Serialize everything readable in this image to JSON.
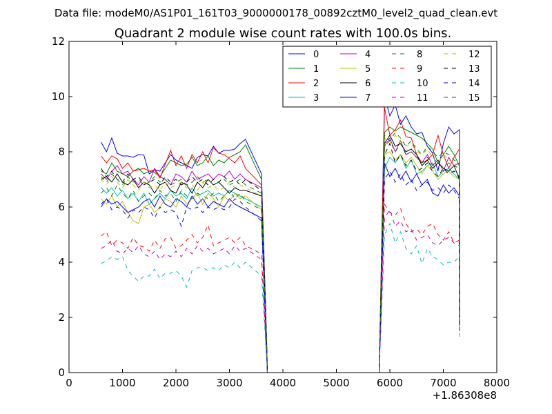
{
  "figure": {
    "suptitle": "Data file: modeM0/AS1P01_161T03_9000000178_00892cztM0_level2_quad_clean.evt"
  },
  "chart_data": {
    "type": "line",
    "title": "Quadrant 2 module wise count rates with 100.0s bins.",
    "xlabel": "",
    "ylabel": "",
    "x_offset_label": "+1.86308e8",
    "xlim": [
      0,
      8000
    ],
    "ylim": [
      0,
      12
    ],
    "xticks": [
      0,
      1000,
      2000,
      3000,
      4000,
      5000,
      6000,
      7000,
      8000
    ],
    "yticks": [
      0,
      2,
      4,
      6,
      8,
      10,
      12
    ],
    "grid": false,
    "legend": {
      "placement": "top-right",
      "columns": 4
    },
    "segments": [
      {
        "x_start": 600,
        "x_end": 3500,
        "step": 100
      },
      {
        "gap": [
          3600,
          3700,
          5800
        ]
      },
      {
        "x_start": 5900,
        "x_end": 7200,
        "step": 100
      }
    ],
    "series": [
      {
        "name": "0",
        "color": "#0000ff",
        "dash": "solid",
        "seg1": [
          8.35,
          8.0,
          8.5,
          7.95,
          7.85,
          7.85,
          7.8,
          7.9,
          7.88,
          7.2,
          7.35,
          7.3,
          7.6,
          7.9,
          7.7,
          7.6,
          7.5,
          7.4,
          7.8,
          7.9,
          7.85,
          8.2,
          7.95,
          8.05,
          8.05,
          8.1,
          8.3,
          8.45
        ],
        "tail1": [
          7.2,
          0.9,
          0
        ],
        "seg2": [
          10.0,
          9.3,
          9.7,
          9.0,
          9.3,
          8.9,
          8.65,
          8.7,
          8.2,
          7.95,
          7.3,
          8.3,
          8.9,
          8.65,
          8.8
        ],
        "tail2": [
          2.4
        ]
      },
      {
        "name": "1",
        "color": "#008000",
        "dash": "solid",
        "seg1": [
          7.3,
          7.2,
          7.6,
          7.3,
          7.2,
          7.1,
          7.3,
          7.4,
          7.2,
          7.3,
          7.25,
          7.1,
          7.4,
          7.7,
          7.6,
          7.5,
          7.55,
          7.8,
          7.5,
          7.6,
          7.85,
          7.5,
          7.7,
          7.6,
          7.8,
          7.9,
          8.0,
          8.25
        ],
        "tail1": [
          7.0,
          0.8,
          0
        ],
        "seg2": [
          8.7,
          8.9,
          8.75,
          8.9,
          8.8,
          8.7,
          8.6,
          8.5,
          8.3,
          8.1,
          7.6,
          7.9,
          8.2,
          7.9,
          7.5
        ],
        "tail2": [
          2.0
        ]
      },
      {
        "name": "2",
        "color": "#ff0000",
        "dash": "solid",
        "seg1": [
          7.85,
          7.6,
          7.85,
          7.75,
          7.4,
          7.6,
          7.3,
          7.35,
          7.4,
          7.3,
          7.35,
          7.05,
          7.55,
          8.05,
          7.5,
          7.85,
          7.4,
          7.9,
          7.6,
          8.0,
          7.6,
          8.15,
          7.95,
          7.9,
          7.75,
          7.6,
          7.85,
          7.4
        ],
        "tail1": [
          6.8,
          0.7,
          0
        ],
        "seg2": [
          9.6,
          8.6,
          8.8,
          9.15,
          8.55,
          8.5,
          7.9,
          7.6,
          7.7,
          7.9,
          8.6,
          7.9,
          7.4,
          7.8,
          8.1
        ],
        "tail2": [
          2.3
        ]
      },
      {
        "name": "3",
        "color": "#00bfbf",
        "dash": "solid",
        "seg1": [
          6.7,
          6.5,
          6.7,
          6.4,
          6.6,
          6.3,
          6.5,
          6.2,
          6.5,
          6.1,
          6.3,
          6.5,
          6.3,
          6.6,
          6.4,
          6.5,
          6.3,
          6.7,
          6.4,
          6.5,
          6.6,
          6.4,
          6.5,
          6.4,
          6.6,
          6.5,
          6.4,
          6.3
        ],
        "tail1": [
          6.0,
          0.6,
          0
        ],
        "seg2": [
          7.4,
          7.8,
          7.6,
          7.9,
          7.4,
          7.7,
          7.2,
          7.3,
          7.5,
          7.6,
          7.1,
          7.3,
          7.4,
          7.2,
          7.0
        ],
        "tail2": [
          1.9
        ]
      },
      {
        "name": "4",
        "color": "#bf00bf",
        "dash": "solid",
        "seg1": [
          7.2,
          7.0,
          7.3,
          7.5,
          7.2,
          7.3,
          7.0,
          6.8,
          7.1,
          6.9,
          7.4,
          7.1,
          7.0,
          6.8,
          7.2,
          7.1,
          6.9,
          7.3,
          7.0,
          7.1,
          7.2,
          7.0,
          7.2,
          7.1,
          7.3,
          7.0,
          7.2,
          7.0
        ],
        "tail1": [
          6.7,
          0.7,
          0
        ],
        "seg2": [
          8.2,
          8.5,
          8.0,
          8.4,
          7.9,
          8.0,
          7.8,
          7.6,
          7.9,
          7.5,
          7.7,
          7.3,
          7.8,
          7.5,
          7.6
        ],
        "tail2": [
          2.1
        ]
      },
      {
        "name": "5",
        "color": "#bfbf00",
        "dash": "solid",
        "seg1": [
          6.3,
          6.1,
          6.4,
          6.0,
          6.2,
          5.8,
          5.5,
          5.4,
          6.0,
          6.1,
          5.8,
          6.0,
          6.3,
          6.2,
          6.0,
          6.4,
          6.1,
          6.3,
          6.5,
          6.1,
          6.5,
          6.3,
          6.0,
          6.4,
          6.2,
          6.5,
          6.3,
          6.4
        ],
        "tail1": [
          5.9,
          0.6,
          0
        ],
        "seg2": [
          7.9,
          8.0,
          7.7,
          7.9,
          7.6,
          7.8,
          7.5,
          7.2,
          7.5,
          7.3,
          7.0,
          7.2,
          7.3,
          7.1,
          7.0
        ],
        "tail2": [
          1.8
        ]
      },
      {
        "name": "6",
        "color": "#000000",
        "dash": "solid",
        "seg1": [
          7.0,
          7.1,
          6.9,
          7.2,
          6.9,
          6.8,
          7.0,
          6.7,
          6.9,
          6.8,
          6.5,
          6.8,
          6.9,
          6.6,
          6.5,
          6.9,
          6.8,
          6.5,
          6.9,
          6.7,
          7.0,
          6.8,
          6.9,
          6.7,
          6.5,
          6.7,
          6.6,
          6.6
        ],
        "tail1": [
          6.4,
          0.6,
          0
        ],
        "seg2": [
          8.3,
          8.6,
          8.2,
          8.3,
          8.0,
          8.1,
          7.9,
          7.5,
          7.7,
          7.4,
          7.6,
          7.4,
          7.3,
          7.5,
          7.0
        ],
        "tail2": [
          2.0
        ]
      },
      {
        "name": "7",
        "color": "#0000ff",
        "dash": "solid",
        "seg1": [
          6.0,
          6.3,
          6.1,
          6.2,
          6.0,
          5.8,
          5.9,
          6.0,
          6.2,
          6.3,
          6.0,
          6.4,
          6.1,
          6.0,
          6.3,
          6.2,
          6.0,
          6.4,
          6.1,
          6.3,
          6.0,
          6.2,
          6.1,
          6.0,
          6.3,
          6.1,
          6.0,
          5.9
        ],
        "tail1": [
          5.6,
          0.5,
          0
        ],
        "seg2": [
          7.6,
          7.1,
          7.4,
          7.0,
          7.3,
          6.9,
          7.2,
          6.8,
          7.0,
          6.5,
          6.4,
          6.8,
          6.5,
          6.7,
          6.4
        ],
        "tail2": [
          1.7
        ]
      },
      {
        "name": "8",
        "color": "#008000",
        "dash": "dashed",
        "seg1": [
          6.5,
          6.7,
          6.4,
          6.8,
          6.5,
          6.3,
          6.6,
          6.2,
          6.4,
          6.5,
          6.3,
          6.6,
          6.4,
          6.5,
          6.2,
          6.6,
          6.4,
          6.3,
          6.5,
          6.4,
          6.3,
          6.5,
          6.2,
          6.4,
          6.6,
          6.3,
          6.5,
          6.2
        ],
        "tail1": [
          5.9,
          0.6,
          0
        ],
        "seg2": [
          8.2,
          8.4,
          8.0,
          8.3,
          7.9,
          8.0,
          7.8,
          7.6,
          7.8,
          7.5,
          7.7,
          7.4,
          7.6,
          7.5,
          7.4
        ],
        "tail2": [
          1.9
        ]
      },
      {
        "name": "9",
        "color": "#ff0000",
        "dash": "dashed",
        "seg1": [
          4.95,
          5.1,
          4.6,
          4.8,
          4.7,
          4.5,
          4.9,
          4.6,
          4.55,
          4.4,
          4.8,
          4.5,
          4.85,
          4.9,
          4.5,
          4.6,
          4.8,
          5.0,
          4.7,
          4.9,
          5.35,
          4.6,
          4.7,
          4.8,
          4.9,
          4.7,
          4.9,
          4.6
        ],
        "tail1": [
          4.3,
          0.4,
          0
        ],
        "seg2": [
          6.1,
          5.8,
          5.7,
          5.95,
          5.4,
          5.1,
          5.2,
          5.0,
          5.3,
          5.4,
          5.0,
          4.8,
          5.1,
          4.7,
          4.8
        ],
        "tail2": [
          1.5
        ]
      },
      {
        "name": "10",
        "color": "#00bfbf",
        "dash": "dashed",
        "seg1": [
          3.95,
          4.05,
          4.2,
          4.1,
          4.2,
          3.7,
          3.5,
          3.3,
          3.5,
          3.5,
          3.75,
          3.4,
          3.6,
          3.6,
          3.7,
          3.5,
          3.1,
          3.7,
          3.8,
          3.8,
          3.7,
          3.8,
          3.7,
          3.9,
          3.8,
          4.0,
          3.8,
          4.0
        ],
        "tail1": [
          3.5,
          0.4,
          0
        ],
        "seg2": [
          5.0,
          5.4,
          4.7,
          5.1,
          4.5,
          4.3,
          4.6,
          3.95,
          4.5,
          4.2,
          4.1,
          3.9,
          4.0,
          4.0,
          4.2
        ],
        "tail2": [
          1.3
        ]
      },
      {
        "name": "11",
        "color": "#bf00bf",
        "dash": "dashed",
        "seg1": [
          4.5,
          4.6,
          4.8,
          4.4,
          4.3,
          4.5,
          4.35,
          4.6,
          4.3,
          4.2,
          4.4,
          4.1,
          4.3,
          4.2,
          4.4,
          4.2,
          4.5,
          4.3,
          4.6,
          4.4,
          4.5,
          4.3,
          4.4,
          4.5,
          4.3,
          4.6,
          4.4,
          4.5
        ],
        "tail1": [
          4.1,
          0.4,
          0
        ],
        "seg2": [
          5.6,
          5.9,
          5.3,
          5.5,
          5.1,
          5.2,
          4.8,
          4.9,
          5.0,
          4.7,
          4.6,
          4.8,
          4.9,
          4.7,
          4.6
        ],
        "tail2": [
          1.5
        ]
      },
      {
        "name": "12",
        "color": "#bfbf00",
        "dash": "dashed",
        "seg1": [
          7.0,
          6.8,
          7.1,
          6.9,
          6.7,
          7.0,
          6.8,
          6.6,
          6.9,
          6.7,
          6.8,
          6.6,
          6.9,
          6.7,
          6.8,
          6.9,
          6.7,
          6.8,
          6.6,
          6.9,
          6.7,
          6.8,
          6.6,
          6.7,
          6.9,
          6.7,
          6.8,
          6.7
        ],
        "tail1": [
          6.4,
          0.6,
          0
        ],
        "seg2": [
          8.5,
          8.3,
          8.6,
          8.4,
          8.2,
          8.3,
          8.0,
          7.9,
          8.1,
          7.8,
          7.6,
          7.9,
          7.7,
          7.6,
          7.5
        ],
        "tail2": [
          2.1
        ]
      },
      {
        "name": "13",
        "color": "#000000",
        "dash": "dashed",
        "seg1": [
          7.4,
          7.1,
          7.3,
          7.0,
          6.9,
          7.2,
          7.0,
          7.1,
          6.8,
          6.9,
          7.0,
          6.8,
          7.1,
          6.9,
          7.0,
          6.8,
          6.9,
          7.1,
          6.9,
          7.0,
          6.8,
          7.0,
          6.9,
          7.1,
          6.9,
          7.0,
          6.8,
          7.0
        ],
        "tail1": [
          6.6,
          0.7,
          0
        ],
        "seg2": [
          7.9,
          8.3,
          7.6,
          7.9,
          7.5,
          7.7,
          7.3,
          7.4,
          7.6,
          7.3,
          7.1,
          7.4,
          7.2,
          7.3,
          7.1
        ],
        "tail2": [
          2.0
        ]
      },
      {
        "name": "14",
        "color": "#0000ff",
        "dash": "dashed",
        "seg1": [
          6.1,
          6.3,
          5.9,
          6.0,
          5.9,
          5.6,
          5.9,
          5.8,
          6.0,
          5.9,
          5.6,
          6.0,
          5.8,
          5.9,
          5.8,
          5.3,
          6.0,
          5.9,
          6.0,
          5.8,
          6.0,
          5.9,
          6.0,
          5.9,
          6.0,
          6.3,
          6.2,
          6.0
        ],
        "tail1": [
          5.5,
          0.5,
          0
        ],
        "seg2": [
          7.0,
          7.3,
          6.9,
          7.2,
          6.8,
          7.0,
          6.6,
          6.8,
          6.9,
          6.6,
          6.7,
          6.5,
          6.8,
          6.6,
          6.3
        ],
        "tail2": [
          1.6
        ]
      },
      {
        "name": "15",
        "color": "#008000",
        "dash": "dashed",
        "seg1": [
          7.1,
          6.9,
          7.2,
          7.0,
          6.8,
          7.1,
          6.9,
          7.0,
          6.8,
          6.9,
          7.1,
          6.9,
          7.0,
          6.8,
          6.9,
          7.0,
          6.8,
          6.9,
          7.1,
          6.9,
          7.0,
          6.8,
          6.9,
          7.0,
          6.8,
          6.9,
          7.0,
          6.8
        ],
        "tail1": [
          6.5,
          0.6,
          0
        ],
        "seg2": [
          8.6,
          8.4,
          8.7,
          8.5,
          8.2,
          8.4,
          8.1,
          7.9,
          8.2,
          8.0,
          7.8,
          8.0,
          7.9,
          7.7,
          7.6
        ],
        "tail2": [
          2.0
        ]
      }
    ]
  }
}
